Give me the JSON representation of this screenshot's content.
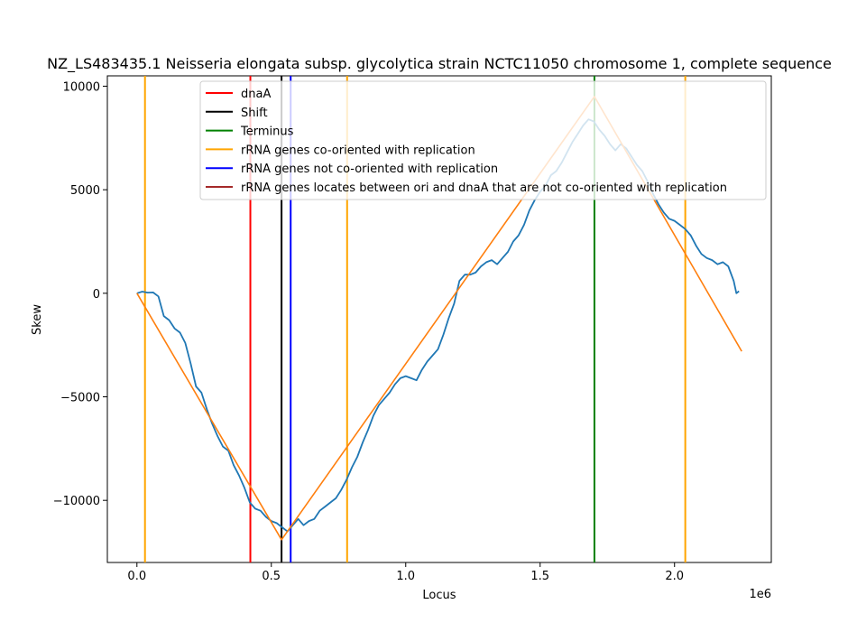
{
  "chart_data": {
    "type": "line",
    "title": "NZ_LS483435.1 Neisseria elongata subsp. glycolytica strain NCTC11050 chromosome 1, complete sequence",
    "xlabel": "Locus",
    "ylabel": "Skew",
    "x_offset_label": "1e6",
    "xlim": [
      -110000,
      2360000
    ],
    "ylim": [
      -13000,
      10500
    ],
    "x_ticks": [
      0,
      500000,
      1000000,
      1500000,
      2000000
    ],
    "x_tick_labels": [
      "0.0",
      "0.5",
      "1.0",
      "1.5",
      "2.0"
    ],
    "y_ticks": [
      -10000,
      -5000,
      0,
      5000,
      10000
    ],
    "y_tick_labels": [
      "−10000",
      "−5000",
      "0",
      "5000",
      "10000"
    ],
    "grid": false,
    "legend_placement": "top",
    "colors": {
      "skew": "#1f77b4",
      "fit": "#ff7f0e",
      "dnaA": "#ff0000",
      "shift": "#000000",
      "terminus": "#008000",
      "co_oriented": "#ffa500",
      "not_co_oriented": "#0000ff",
      "between_ori_dnaA": "#a52a2a"
    },
    "legend": [
      {
        "label": "dnaA",
        "color": "#ff0000"
      },
      {
        "label": "Shift",
        "color": "#000000"
      },
      {
        "label": "Terminus",
        "color": "#008000"
      },
      {
        "label": "rRNA genes co-oriented with replication",
        "color": "#ffa500"
      },
      {
        "label": "rRNA genes not co-oriented with replication",
        "color": "#0000ff"
      },
      {
        "label": "rRNA genes locates between ori and dnaA that are not co-oriented with replication",
        "color": "#a52a2a"
      }
    ],
    "vertical_lines": [
      {
        "kind": "co_oriented",
        "x": 30000
      },
      {
        "kind": "dnaA",
        "x": 422000
      },
      {
        "kind": "shift",
        "x": 538000
      },
      {
        "kind": "not_co_oriented",
        "x": 572000
      },
      {
        "kind": "co_oriented",
        "x": 782000
      },
      {
        "kind": "terminus",
        "x": 1702000
      },
      {
        "kind": "co_oriented",
        "x": 2040000
      }
    ],
    "series": [
      {
        "key": "skew",
        "x": [
          0,
          20000,
          40000,
          60000,
          80000,
          100000,
          120000,
          140000,
          160000,
          180000,
          200000,
          220000,
          240000,
          260000,
          280000,
          300000,
          320000,
          340000,
          360000,
          380000,
          400000,
          420000,
          440000,
          460000,
          480000,
          500000,
          520000,
          540000,
          560000,
          580000,
          600000,
          620000,
          640000,
          660000,
          680000,
          700000,
          720000,
          740000,
          760000,
          780000,
          800000,
          820000,
          840000,
          860000,
          880000,
          900000,
          920000,
          940000,
          960000,
          980000,
          1000000,
          1020000,
          1040000,
          1060000,
          1080000,
          1100000,
          1120000,
          1140000,
          1160000,
          1180000,
          1200000,
          1220000,
          1240000,
          1260000,
          1280000,
          1300000,
          1320000,
          1340000,
          1360000,
          1380000,
          1400000,
          1420000,
          1440000,
          1460000,
          1480000,
          1500000,
          1520000,
          1540000,
          1560000,
          1580000,
          1600000,
          1620000,
          1640000,
          1660000,
          1680000,
          1700000,
          1720000,
          1740000,
          1760000,
          1780000,
          1800000,
          1820000,
          1840000,
          1860000,
          1880000,
          1900000,
          1920000,
          1940000,
          1960000,
          1980000,
          2000000,
          2020000,
          2040000,
          2060000,
          2080000,
          2100000,
          2120000,
          2140000,
          2160000,
          2180000,
          2200000,
          2220000,
          2230000,
          2240000
        ],
        "y": [
          0,
          80,
          30,
          40,
          -150,
          -1100,
          -1300,
          -1700,
          -1900,
          -2400,
          -3400,
          -4500,
          -4800,
          -5600,
          -6300,
          -6900,
          -7400,
          -7600,
          -8300,
          -8800,
          -9400,
          -10100,
          -10400,
          -10500,
          -10800,
          -11000,
          -11100,
          -11300,
          -11500,
          -11200,
          -10900,
          -11200,
          -11000,
          -10900,
          -10500,
          -10300,
          -10100,
          -9900,
          -9500,
          -9000,
          -8400,
          -7900,
          -7200,
          -6600,
          -5900,
          -5400,
          -5100,
          -4800,
          -4400,
          -4100,
          -4000,
          -4100,
          -4200,
          -3700,
          -3300,
          -3000,
          -2700,
          -2000,
          -1200,
          -500,
          600,
          900,
          900,
          1000,
          1300,
          1500,
          1600,
          1400,
          1700,
          2000,
          2500,
          2800,
          3300,
          4000,
          4500,
          4900,
          5200,
          5700,
          5900,
          6300,
          6800,
          7300,
          7700,
          8100,
          8400,
          8300,
          7900,
          7600,
          7200,
          6900,
          7200,
          7000,
          6600,
          6200,
          5900,
          5400,
          4800,
          4300,
          3900,
          3600,
          3500,
          3300,
          3100,
          2800,
          2300,
          1900,
          1700,
          1600,
          1400,
          1500,
          1300,
          600,
          0,
          100
        ]
      },
      {
        "key": "fit",
        "x": [
          0,
          538000,
          1702000,
          2250000
        ],
        "y": [
          0,
          -11900,
          9500,
          -2800
        ]
      }
    ]
  }
}
